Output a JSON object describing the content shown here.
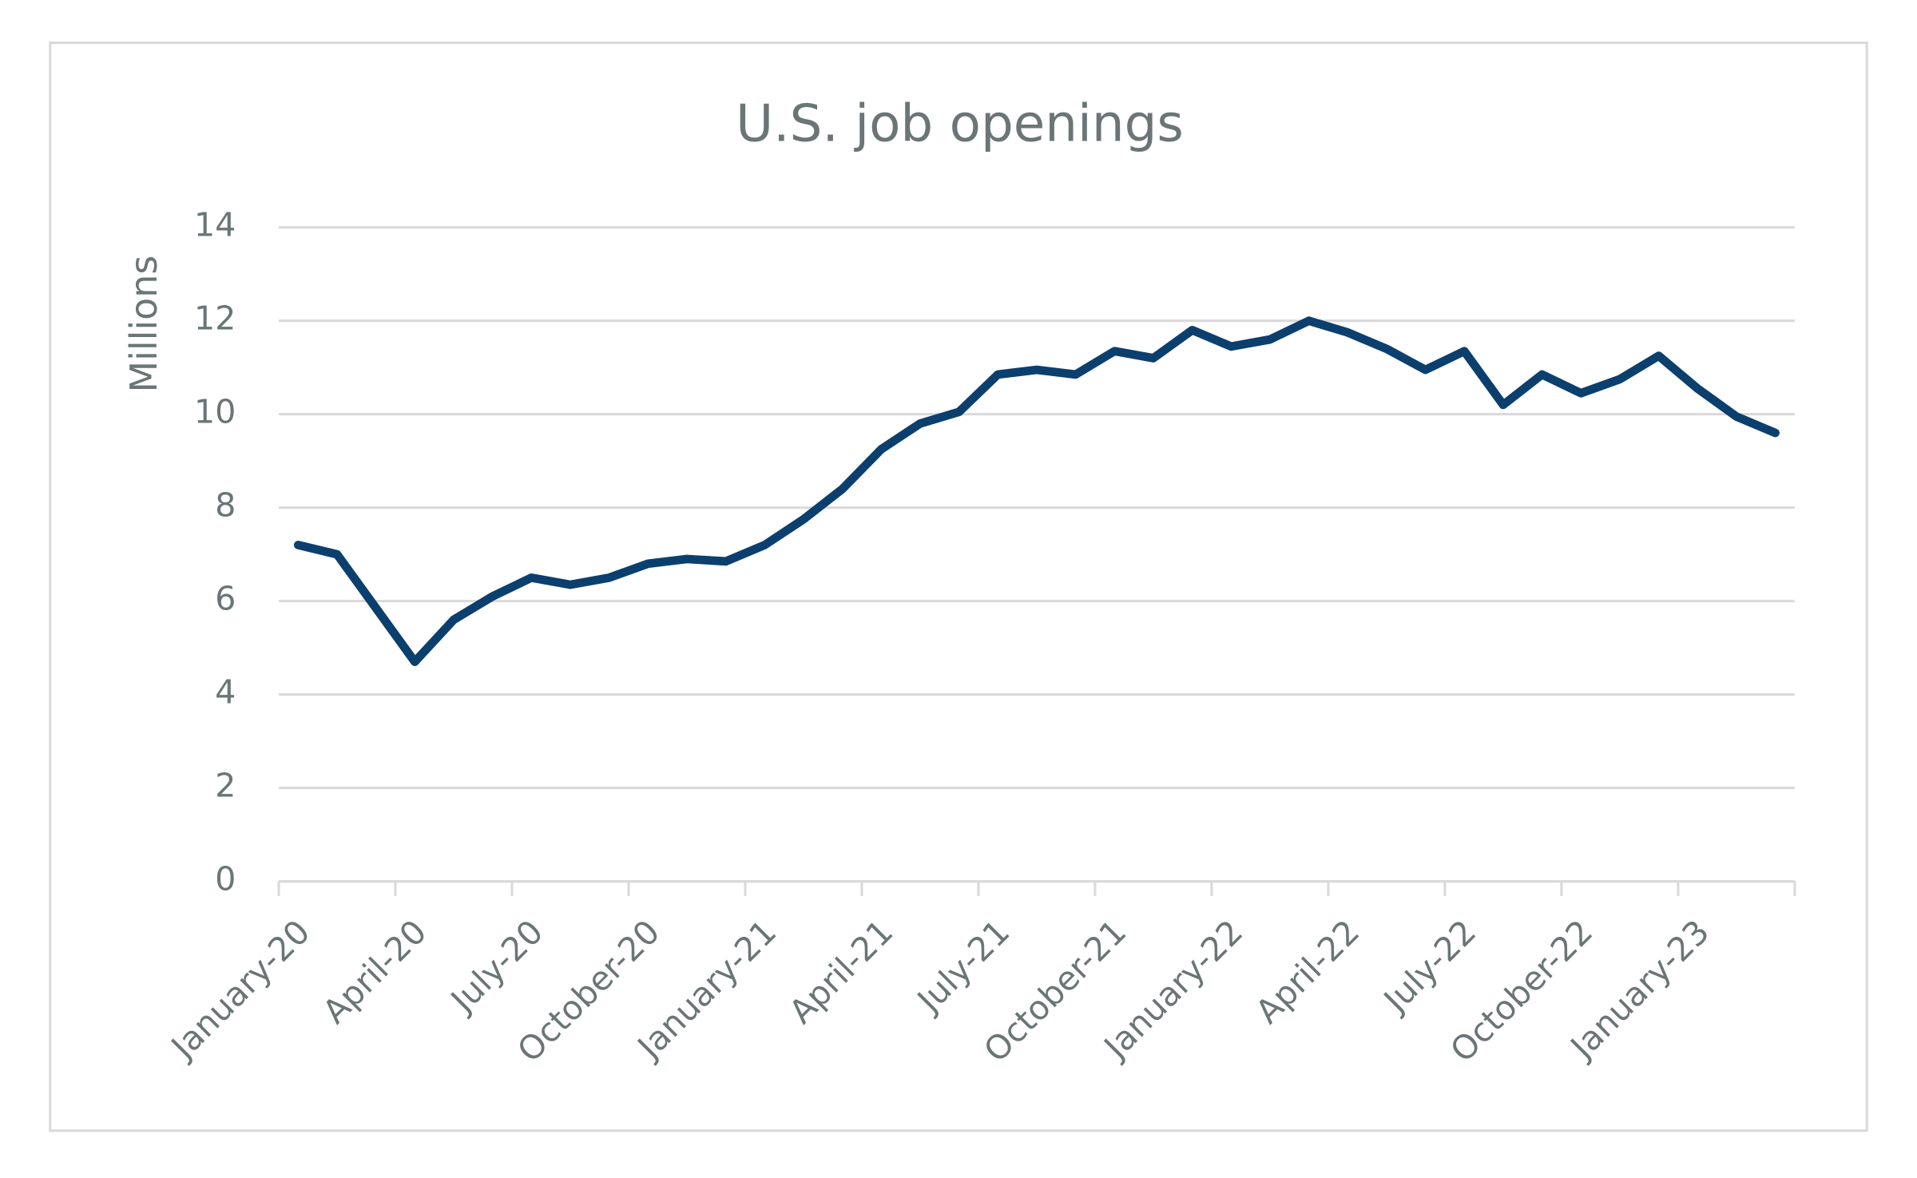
{
  "chart_data": {
    "type": "line",
    "title": "U.S. job openings",
    "y_label": "Millions",
    "categories": [
      "January-20",
      null,
      null,
      "April-20",
      null,
      null,
      "July-20",
      null,
      null,
      "October-20",
      null,
      null,
      "January-21",
      null,
      null,
      "April-21",
      null,
      null,
      "July-21",
      null,
      null,
      "October-21",
      null,
      null,
      "January-22",
      null,
      null,
      "April-22",
      null,
      null,
      "July-22",
      null,
      null,
      "October-22",
      null,
      null,
      "January-23",
      null,
      null
    ],
    "values": [
      7.2,
      7.0,
      5.85,
      4.7,
      5.6,
      6.1,
      6.5,
      6.35,
      6.5,
      6.8,
      6.9,
      6.85,
      7.2,
      7.75,
      8.4,
      9.25,
      9.8,
      10.05,
      10.85,
      10.95,
      10.85,
      11.35,
      11.2,
      11.8,
      11.45,
      11.6,
      12.0,
      11.75,
      11.4,
      10.95,
      11.35,
      10.2,
      10.85,
      10.45,
      10.75,
      11.25,
      10.55,
      9.95,
      9.6
    ],
    "color": "#0b3f6e",
    "ylim": [
      0,
      14
    ],
    "yticks": [
      0,
      2,
      4,
      6,
      8,
      10,
      12,
      14
    ],
    "grid": true
  }
}
